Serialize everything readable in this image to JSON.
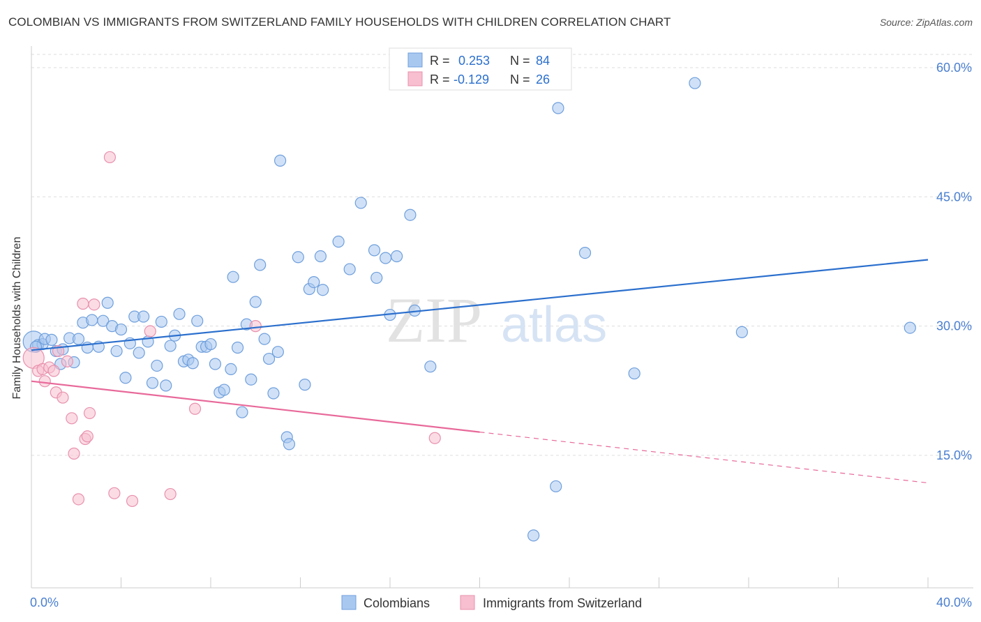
{
  "title": "COLOMBIAN VS IMMIGRANTS FROM SWITZERLAND FAMILY HOUSEHOLDS WITH CHILDREN CORRELATION CHART",
  "source": "Source: ZipAtlas.com",
  "watermark": {
    "zip": "ZIP",
    "atlas": "atlas"
  },
  "colors": {
    "blue_fill": "#a9c8f0",
    "blue_stroke": "#6f9fdc",
    "blue_line": "#2b6fcd",
    "pink_fill": "#f7bfd0",
    "pink_stroke": "#e891ad",
    "pink_line": "#e8699a",
    "axis_label": "#4a7fd0",
    "grid": "#dddddd"
  },
  "legend": {
    "rows": [
      {
        "r_label": "R = ",
        "r_value": "0.253",
        "n_label": "N = ",
        "n_value": "84",
        "series": "blue"
      },
      {
        "r_label": "R = ",
        "r_value": "-0.129",
        "n_label": "N = ",
        "n_value": "26",
        "series": "pink"
      }
    ]
  },
  "bottom_legend": [
    "Colombians",
    "Immigrants from Switzerland"
  ],
  "chart_data": {
    "type": "scatter",
    "title": "COLOMBIAN VS IMMIGRANTS FROM SWITZERLAND FAMILY HOUSEHOLDS WITH CHILDREN CORRELATION CHART",
    "xlabel": "",
    "ylabel": "Family Households with Children",
    "xlim": [
      0,
      40
    ],
    "ylim": [
      0,
      62
    ],
    "x_ticks_labeled": [
      {
        "value": 0,
        "label": "0.0%"
      },
      {
        "value": 40,
        "label": "40.0%"
      }
    ],
    "y_ticks": [
      {
        "value": 15,
        "label": "15.0%"
      },
      {
        "value": 30,
        "label": "30.0%"
      },
      {
        "value": 45,
        "label": "45.0%"
      },
      {
        "value": 60,
        "label": "60.0%"
      }
    ],
    "x_minor_ticks": [
      4,
      8,
      12,
      16,
      20,
      24,
      28,
      32,
      36,
      40
    ],
    "grid": true,
    "legend_position": "top-center",
    "series": [
      {
        "name": "Colombians",
        "color": "blue",
        "R": 0.253,
        "N": 84,
        "trend": {
          "x": [
            0,
            40
          ],
          "y": [
            27.2,
            37.7
          ],
          "dashed_from": null
        },
        "points": [
          [
            0.1,
            28.2
          ],
          [
            0.3,
            27.8
          ],
          [
            0.5,
            27.9
          ],
          [
            0.6,
            28.5
          ],
          [
            0.9,
            28.4
          ],
          [
            1.1,
            27.1
          ],
          [
            1.4,
            27.3
          ],
          [
            1.3,
            25.6
          ],
          [
            1.7,
            28.6
          ],
          [
            1.9,
            25.8
          ],
          [
            2.1,
            28.5
          ],
          [
            2.3,
            30.4
          ],
          [
            2.5,
            27.5
          ],
          [
            2.7,
            30.7
          ],
          [
            3.0,
            27.6
          ],
          [
            3.2,
            30.6
          ],
          [
            3.4,
            32.7
          ],
          [
            3.6,
            30.0
          ],
          [
            3.8,
            27.1
          ],
          [
            4.0,
            29.6
          ],
          [
            4.2,
            24.0
          ],
          [
            4.4,
            28.0
          ],
          [
            4.6,
            31.1
          ],
          [
            4.8,
            26.9
          ],
          [
            5.0,
            31.1
          ],
          [
            5.2,
            28.2
          ],
          [
            5.4,
            23.4
          ],
          [
            5.6,
            25.4
          ],
          [
            5.8,
            30.5
          ],
          [
            6.0,
            23.1
          ],
          [
            6.2,
            27.7
          ],
          [
            6.4,
            28.9
          ],
          [
            6.6,
            31.4
          ],
          [
            6.8,
            25.9
          ],
          [
            7.0,
            26.1
          ],
          [
            7.2,
            25.7
          ],
          [
            7.4,
            30.6
          ],
          [
            7.6,
            27.6
          ],
          [
            7.8,
            27.6
          ],
          [
            8.0,
            27.9
          ],
          [
            8.2,
            25.6
          ],
          [
            8.4,
            22.3
          ],
          [
            8.6,
            22.6
          ],
          [
            8.9,
            25.0
          ],
          [
            9.0,
            35.7
          ],
          [
            9.2,
            27.5
          ],
          [
            9.4,
            20.0
          ],
          [
            9.6,
            30.2
          ],
          [
            9.8,
            23.8
          ],
          [
            10.0,
            32.8
          ],
          [
            10.2,
            37.1
          ],
          [
            10.4,
            28.5
          ],
          [
            10.6,
            26.2
          ],
          [
            10.8,
            22.2
          ],
          [
            11.0,
            27.0
          ],
          [
            11.1,
            49.2
          ],
          [
            11.4,
            17.1
          ],
          [
            11.5,
            16.3
          ],
          [
            11.9,
            38.0
          ],
          [
            12.2,
            23.2
          ],
          [
            12.4,
            34.3
          ],
          [
            12.6,
            35.1
          ],
          [
            12.9,
            38.1
          ],
          [
            13.0,
            34.2
          ],
          [
            13.7,
            39.8
          ],
          [
            14.2,
            36.6
          ],
          [
            14.7,
            44.3
          ],
          [
            15.3,
            38.8
          ],
          [
            15.4,
            35.6
          ],
          [
            15.8,
            37.9
          ],
          [
            16.0,
            31.3
          ],
          [
            16.3,
            38.1
          ],
          [
            16.9,
            42.9
          ],
          [
            17.1,
            31.8
          ],
          [
            17.8,
            25.3
          ],
          [
            23.5,
            55.3
          ],
          [
            23.4,
            11.4
          ],
          [
            22.4,
            5.7
          ],
          [
            24.7,
            38.5
          ],
          [
            26.9,
            24.5
          ],
          [
            29.6,
            58.2
          ],
          [
            31.7,
            29.3
          ],
          [
            39.2,
            29.8
          ],
          [
            0.2,
            27.6
          ]
        ]
      },
      {
        "name": "Immigrants from Switzerland",
        "color": "pink",
        "R": -0.129,
        "N": 26,
        "trend": {
          "x": [
            0,
            40
          ],
          "y": [
            23.6,
            11.8
          ],
          "dashed_from": 20
        },
        "points": [
          [
            0.1,
            26.3
          ],
          [
            0.3,
            24.8
          ],
          [
            0.5,
            25.0
          ],
          [
            0.6,
            23.6
          ],
          [
            0.8,
            25.2
          ],
          [
            1.0,
            24.8
          ],
          [
            1.1,
            22.3
          ],
          [
            1.2,
            27.1
          ],
          [
            1.4,
            21.7
          ],
          [
            1.6,
            25.9
          ],
          [
            1.8,
            19.3
          ],
          [
            1.9,
            15.2
          ],
          [
            2.1,
            9.9
          ],
          [
            2.3,
            32.6
          ],
          [
            2.4,
            16.9
          ],
          [
            2.5,
            17.2
          ],
          [
            2.6,
            19.9
          ],
          [
            2.8,
            32.5
          ],
          [
            3.5,
            49.6
          ],
          [
            3.7,
            10.6
          ],
          [
            4.5,
            9.7
          ],
          [
            5.3,
            29.4
          ],
          [
            6.2,
            10.5
          ],
          [
            7.3,
            20.4
          ],
          [
            10.0,
            30.0
          ],
          [
            18.0,
            17.0
          ]
        ]
      }
    ]
  }
}
